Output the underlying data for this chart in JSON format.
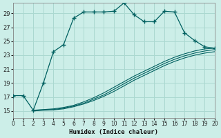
{
  "xlabel": "Humidex (Indice chaleur)",
  "ylabel": "",
  "bg_color": "#cceee8",
  "grid_color": "#aad8d0",
  "line_color": "#006060",
  "xmin": 0,
  "xmax": 20,
  "ymin": 14.0,
  "ymax": 30.5,
  "yticks": [
    15,
    17,
    19,
    21,
    23,
    25,
    27,
    29
  ],
  "xticks": [
    0,
    1,
    2,
    3,
    4,
    5,
    6,
    7,
    8,
    9,
    10,
    11,
    12,
    13,
    14,
    15,
    16,
    17,
    18,
    19,
    20
  ],
  "main_x": [
    0,
    1,
    2,
    3,
    4,
    5,
    6,
    7,
    8,
    9,
    10,
    11,
    12,
    13,
    14,
    15,
    16,
    17,
    18,
    19,
    20
  ],
  "main_y": [
    17.2,
    17.2,
    15.1,
    19.0,
    23.5,
    24.5,
    28.3,
    29.2,
    29.2,
    29.2,
    29.3,
    30.5,
    28.8,
    27.8,
    27.8,
    29.3,
    29.2,
    26.2,
    25.1,
    24.2,
    24.0
  ],
  "line1_x": [
    2,
    3,
    4,
    5,
    6,
    7,
    8,
    9,
    10,
    11,
    12,
    13,
    14,
    15,
    16,
    17,
    18,
    19,
    20
  ],
  "line1_y": [
    15.1,
    15.2,
    15.3,
    15.5,
    15.8,
    16.3,
    16.9,
    17.6,
    18.4,
    19.2,
    20.0,
    20.7,
    21.4,
    22.1,
    22.7,
    23.2,
    23.6,
    23.9,
    24.0
  ],
  "line2_x": [
    2,
    3,
    4,
    5,
    6,
    7,
    8,
    9,
    10,
    11,
    12,
    13,
    14,
    15,
    16,
    17,
    18,
    19,
    20
  ],
  "line2_y": [
    15.1,
    15.15,
    15.2,
    15.4,
    15.7,
    16.1,
    16.7,
    17.3,
    18.1,
    18.9,
    19.7,
    20.4,
    21.1,
    21.8,
    22.4,
    22.9,
    23.3,
    23.6,
    23.8
  ],
  "line3_x": [
    2,
    3,
    4,
    5,
    6,
    7,
    8,
    9,
    10,
    11,
    12,
    13,
    14,
    15,
    16,
    17,
    18,
    19,
    20
  ],
  "line3_y": [
    15.0,
    15.1,
    15.15,
    15.3,
    15.6,
    16.0,
    16.5,
    17.1,
    17.8,
    18.6,
    19.4,
    20.1,
    20.8,
    21.5,
    22.1,
    22.6,
    23.0,
    23.3,
    23.5
  ]
}
